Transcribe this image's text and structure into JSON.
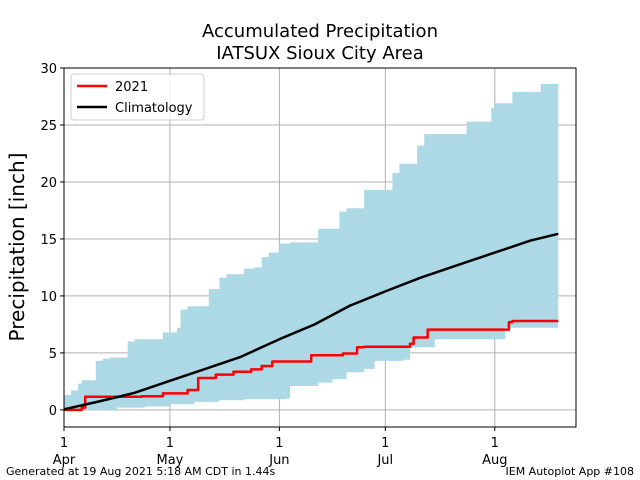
{
  "chart_data": {
    "type": "area",
    "title": "Accumulated Precipitation",
    "subtitle": "IATSUX Sioux City Area",
    "xlabel": "",
    "ylabel": "Precipitation [inch]",
    "xlim": [
      "2021-04-01",
      "2021-08-24"
    ],
    "ylim": [
      -1.5,
      30
    ],
    "yticks": [
      0,
      5,
      10,
      15,
      20,
      25,
      30
    ],
    "xticks": [
      {
        "date": "2021-04-01",
        "day": "1",
        "month": "Apr"
      },
      {
        "date": "2021-05-01",
        "day": "1",
        "month": "May"
      },
      {
        "date": "2021-06-01",
        "day": "1",
        "month": "Jun"
      },
      {
        "date": "2021-07-01",
        "day": "1",
        "month": "Jul"
      },
      {
        "date": "2021-08-01",
        "day": "1",
        "month": "Aug"
      }
    ],
    "grid": true,
    "legend_position": "top-left",
    "series": [
      {
        "name": "2021",
        "color": "#ff0000",
        "style": "step",
        "points": [
          [
            "2021-04-01",
            0.0
          ],
          [
            "2021-04-06",
            0.2
          ],
          [
            "2021-04-07",
            1.15
          ],
          [
            "2021-04-21",
            1.15
          ],
          [
            "2021-04-23",
            1.2
          ],
          [
            "2021-04-28",
            1.2
          ],
          [
            "2021-04-29",
            1.45
          ],
          [
            "2021-05-05",
            1.45
          ],
          [
            "2021-05-06",
            1.75
          ],
          [
            "2021-05-08",
            1.75
          ],
          [
            "2021-05-09",
            2.8
          ],
          [
            "2021-05-13",
            2.8
          ],
          [
            "2021-05-14",
            3.1
          ],
          [
            "2021-05-18",
            3.1
          ],
          [
            "2021-05-19",
            3.35
          ],
          [
            "2021-05-23",
            3.35
          ],
          [
            "2021-05-24",
            3.55
          ],
          [
            "2021-05-26",
            3.55
          ],
          [
            "2021-05-27",
            3.85
          ],
          [
            "2021-05-29",
            3.85
          ],
          [
            "2021-05-30",
            4.25
          ],
          [
            "2021-06-09",
            4.25
          ],
          [
            "2021-06-10",
            4.8
          ],
          [
            "2021-06-18",
            4.8
          ],
          [
            "2021-06-19",
            4.95
          ],
          [
            "2021-06-22",
            4.95
          ],
          [
            "2021-06-23",
            5.5
          ],
          [
            "2021-06-25",
            5.55
          ],
          [
            "2021-07-07",
            5.55
          ],
          [
            "2021-07-08",
            5.8
          ],
          [
            "2021-07-09",
            6.35
          ],
          [
            "2021-07-12",
            6.35
          ],
          [
            "2021-07-13",
            7.05
          ],
          [
            "2021-08-04",
            7.05
          ],
          [
            "2021-08-05",
            7.7
          ],
          [
            "2021-08-06",
            7.8
          ],
          [
            "2021-08-19",
            7.8
          ]
        ]
      },
      {
        "name": "Climatology",
        "color": "#000000",
        "style": "line",
        "points": [
          [
            "2021-04-01",
            0.05
          ],
          [
            "2021-04-11",
            0.75
          ],
          [
            "2021-04-21",
            1.5
          ],
          [
            "2021-05-01",
            2.55
          ],
          [
            "2021-05-11",
            3.6
          ],
          [
            "2021-05-21",
            4.65
          ],
          [
            "2021-06-01",
            6.2
          ],
          [
            "2021-06-11",
            7.5
          ],
          [
            "2021-06-21",
            9.15
          ],
          [
            "2021-07-01",
            10.4
          ],
          [
            "2021-07-11",
            11.6
          ],
          [
            "2021-07-21",
            12.65
          ],
          [
            "2021-08-01",
            13.8
          ],
          [
            "2021-08-11",
            14.85
          ],
          [
            "2021-08-19",
            15.45
          ]
        ]
      }
    ],
    "range_band": {
      "color": "#add8e6",
      "upper": [
        [
          "2021-04-01",
          1.3
        ],
        [
          "2021-04-03",
          1.7
        ],
        [
          "2021-04-05",
          2.3
        ],
        [
          "2021-04-06",
          2.6
        ],
        [
          "2021-04-09",
          2.6
        ],
        [
          "2021-04-10",
          4.3
        ],
        [
          "2021-04-12",
          4.5
        ],
        [
          "2021-04-14",
          4.6
        ],
        [
          "2021-04-18",
          4.6
        ],
        [
          "2021-04-19",
          6.0
        ],
        [
          "2021-04-21",
          6.2
        ],
        [
          "2021-04-28",
          6.2
        ],
        [
          "2021-04-29",
          6.8
        ],
        [
          "2021-05-03",
          7.2
        ],
        [
          "2021-05-04",
          8.8
        ],
        [
          "2021-05-06",
          9.1
        ],
        [
          "2021-05-10",
          9.1
        ],
        [
          "2021-05-12",
          10.6
        ],
        [
          "2021-05-15",
          11.6
        ],
        [
          "2021-05-17",
          11.9
        ],
        [
          "2021-05-21",
          11.9
        ],
        [
          "2021-05-22",
          12.4
        ],
        [
          "2021-05-25",
          12.5
        ],
        [
          "2021-05-27",
          13.4
        ],
        [
          "2021-05-29",
          13.8
        ],
        [
          "2021-06-01",
          14.6
        ],
        [
          "2021-06-04",
          14.7
        ],
        [
          "2021-06-11",
          14.7
        ],
        [
          "2021-06-12",
          15.9
        ],
        [
          "2021-06-16",
          15.9
        ],
        [
          "2021-06-18",
          17.4
        ],
        [
          "2021-06-20",
          17.7
        ],
        [
          "2021-06-24",
          17.7
        ],
        [
          "2021-06-25",
          19.3
        ],
        [
          "2021-07-01",
          19.3
        ],
        [
          "2021-07-03",
          20.8
        ],
        [
          "2021-07-05",
          21.6
        ],
        [
          "2021-07-09",
          21.6
        ],
        [
          "2021-07-10",
          23.2
        ],
        [
          "2021-07-12",
          24.2
        ],
        [
          "2021-07-22",
          24.2
        ],
        [
          "2021-07-24",
          25.3
        ],
        [
          "2021-07-29",
          25.3
        ],
        [
          "2021-07-31",
          26.5
        ],
        [
          "2021-08-01",
          26.9
        ],
        [
          "2021-08-04",
          26.9
        ],
        [
          "2021-08-06",
          27.9
        ],
        [
          "2021-08-13",
          27.9
        ],
        [
          "2021-08-14",
          28.6
        ],
        [
          "2021-08-19",
          28.6
        ]
      ],
      "lower": [
        [
          "2021-04-01",
          0.0
        ],
        [
          "2021-04-15",
          0.0
        ],
        [
          "2021-04-16",
          0.2
        ],
        [
          "2021-04-24",
          0.3
        ],
        [
          "2021-05-01",
          0.5
        ],
        [
          "2021-05-08",
          0.7
        ],
        [
          "2021-05-15",
          0.85
        ],
        [
          "2021-05-22",
          0.95
        ],
        [
          "2021-06-03",
          1.0
        ],
        [
          "2021-06-04",
          2.1
        ],
        [
          "2021-06-12",
          2.4
        ],
        [
          "2021-06-16",
          2.7
        ],
        [
          "2021-06-20",
          3.3
        ],
        [
          "2021-06-25",
          3.6
        ],
        [
          "2021-06-28",
          4.3
        ],
        [
          "2021-07-06",
          4.4
        ],
        [
          "2021-07-08",
          5.5
        ],
        [
          "2021-07-14",
          5.5
        ],
        [
          "2021-07-15",
          6.2
        ],
        [
          "2021-08-03",
          6.2
        ],
        [
          "2021-08-04",
          7.2
        ],
        [
          "2021-08-19",
          7.2
        ]
      ]
    }
  },
  "footer": {
    "left": "Generated at 19 Aug 2021 5:18 AM CDT in 1.44s",
    "right": "IEM Autoplot App #108"
  }
}
